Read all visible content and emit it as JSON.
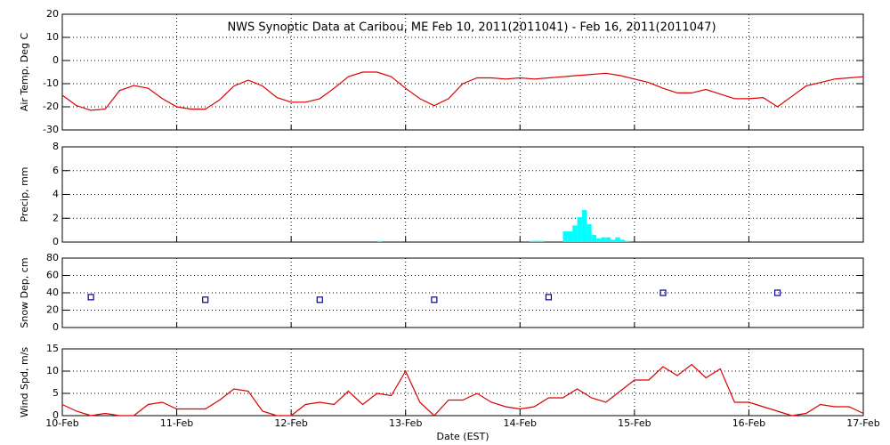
{
  "chart_data": [
    {
      "type": "line",
      "title": "NWS Synoptic Data at Caribou, ME   Feb 10, 2011(2011041) - Feb 16, 2011(2011047)",
      "ylabel": "Air Temp, Deg C",
      "x": [
        0,
        0.125,
        0.25,
        0.375,
        0.5,
        0.625,
        0.75,
        0.875,
        1,
        1.125,
        1.25,
        1.375,
        1.5,
        1.625,
        1.75,
        1.875,
        2,
        2.125,
        2.25,
        2.375,
        2.5,
        2.625,
        2.75,
        2.875,
        3,
        3.125,
        3.25,
        3.375,
        3.5,
        3.625,
        3.75,
        3.875,
        4,
        4.125,
        4.25,
        4.375,
        4.5,
        4.625,
        4.75,
        4.875,
        5,
        5.125,
        5.25,
        5.375,
        5.5,
        5.625,
        5.75,
        5.875,
        6,
        6.125,
        6.25,
        6.375,
        6.5,
        6.625,
        6.75,
        6.875,
        7
      ],
      "series": [
        {
          "name": "Air Temp",
          "color": "#dd0000",
          "values": [
            -15,
            -19.5,
            -21.5,
            -21,
            -13,
            -10.8,
            -12,
            -16.5,
            -20,
            -21,
            -21,
            -17,
            -11,
            -8.5,
            -11,
            -16,
            -18,
            -18,
            -16.5,
            -12,
            -7,
            -5,
            -5,
            -7,
            -12,
            -16.5,
            -19.5,
            -16.5,
            -10,
            -7.5,
            -7.5,
            -8,
            -7.5,
            -8,
            -7.5,
            -7,
            -6.5,
            -6,
            -5.5,
            -6.5,
            -8,
            -9.5,
            -12,
            -14,
            -14,
            -12.5,
            -14.5,
            -16.5,
            -16.5,
            -16,
            -20,
            -15.5,
            -11,
            -9.5,
            -8,
            -7.5,
            -7
          ]
        }
      ],
      "xlim": [
        0,
        7
      ],
      "xticks": [
        0,
        1,
        2,
        3,
        4,
        5,
        6,
        7
      ],
      "ylim": [
        -30,
        20
      ],
      "yticks": [
        -30,
        -20,
        -10,
        0,
        10,
        20
      ],
      "grid": true
    },
    {
      "type": "bar",
      "ylabel": "Precip, mm",
      "x": [
        2.75,
        4.083,
        4.125,
        4.167,
        4.375,
        4.417,
        4.458,
        4.5,
        4.542,
        4.583,
        4.625,
        4.667,
        4.708,
        4.75,
        4.792,
        4.833,
        4.875,
        4.917
      ],
      "series": [
        {
          "name": "Precip",
          "color": "#00ffff",
          "values": [
            0.1,
            0.1,
            0.1,
            0.1,
            0.9,
            0.9,
            1.4,
            2.1,
            2.7,
            1.5,
            0.6,
            0.3,
            0.4,
            0.4,
            0.2,
            0.4,
            0.2,
            0.1
          ]
        }
      ],
      "xlim": [
        0,
        7
      ],
      "xticks": [
        0,
        1,
        2,
        3,
        4,
        5,
        6,
        7
      ],
      "ylim": [
        0,
        8
      ],
      "yticks": [
        0,
        2,
        4,
        6,
        8
      ],
      "grid": true
    },
    {
      "type": "scatter",
      "ylabel": "Snow Dep, cm",
      "x": [
        0.25,
        1.25,
        2.25,
        3.25,
        4.25,
        5.25,
        6.25
      ],
      "series": [
        {
          "name": "Snow Depth",
          "color": "#000099",
          "values": [
            35,
            32,
            32,
            32,
            35,
            40,
            40
          ]
        }
      ],
      "xlim": [
        0,
        7
      ],
      "xticks": [
        0,
        1,
        2,
        3,
        4,
        5,
        6,
        7
      ],
      "ylim": [
        0,
        80
      ],
      "yticks": [
        0,
        20,
        40,
        60,
        80
      ],
      "grid": true
    },
    {
      "type": "line",
      "ylabel": "Wind Spd, m/s",
      "xlabel": "Date (EST)",
      "x": [
        0,
        0.125,
        0.25,
        0.375,
        0.5,
        0.625,
        0.75,
        0.875,
        1,
        1.125,
        1.25,
        1.375,
        1.5,
        1.625,
        1.75,
        1.875,
        2,
        2.125,
        2.25,
        2.375,
        2.5,
        2.625,
        2.75,
        2.875,
        3,
        3.125,
        3.25,
        3.375,
        3.5,
        3.625,
        3.75,
        3.875,
        4,
        4.125,
        4.25,
        4.375,
        4.5,
        4.625,
        4.75,
        4.875,
        5,
        5.125,
        5.25,
        5.375,
        5.5,
        5.625,
        5.75,
        5.875,
        6,
        6.125,
        6.25,
        6.375,
        6.5,
        6.625,
        6.75,
        6.875,
        7
      ],
      "series": [
        {
          "name": "Wind Speed",
          "color": "#dd0000",
          "values": [
            2.5,
            1,
            0,
            0.5,
            0,
            0,
            2.5,
            3,
            1.5,
            1.5,
            1.5,
            3.5,
            6,
            5.5,
            1,
            0,
            0,
            2.5,
            3,
            2.5,
            5.5,
            2.5,
            5,
            4.5,
            10,
            3,
            0,
            3.5,
            3.5,
            5,
            3,
            2,
            1.5,
            2,
            4,
            4,
            6,
            4,
            3,
            5.5,
            8,
            8,
            11,
            9,
            11.5,
            8.5,
            10.5,
            3,
            3,
            2,
            1,
            0,
            0.5,
            2.5,
            2,
            2,
            0.5
          ]
        }
      ],
      "xlim": [
        0,
        7
      ],
      "xticks": [
        {
          "value": 0,
          "label": "10-Feb"
        },
        {
          "value": 1,
          "label": "11-Feb"
        },
        {
          "value": 2,
          "label": "12-Feb"
        },
        {
          "value": 3,
          "label": "13-Feb"
        },
        {
          "value": 4,
          "label": "14-Feb"
        },
        {
          "value": 5,
          "label": "15-Feb"
        },
        {
          "value": 6,
          "label": "16-Feb"
        },
        {
          "value": 7,
          "label": "17-Feb"
        }
      ],
      "ylim": [
        0,
        15
      ],
      "yticks": [
        0,
        5,
        10,
        15
      ],
      "grid": true
    }
  ]
}
